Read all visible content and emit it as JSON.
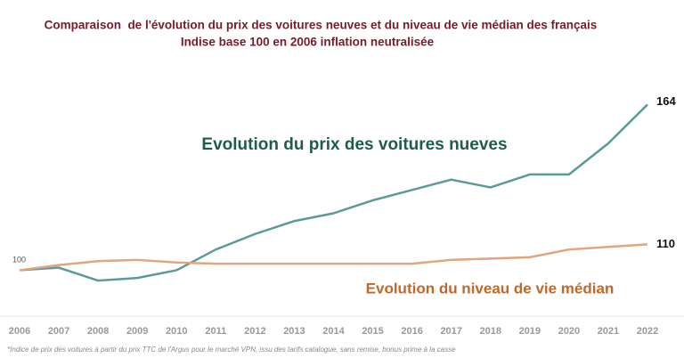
{
  "chart_data": {
    "type": "line",
    "title": "Comparaison  de l'évolution du prix des voitures neuves et du niveau de vie médian des français",
    "subtitle": "Indise base 100 en 2006 inflation neutralisée",
    "footnote": "*Indice de prix des voitures à partir du prix TTC de l'Argus pour le marché VPN, issu des tarifs catalogue, sans remise, bonus prime à la casse",
    "categories": [
      "2006",
      "2007",
      "2008",
      "2009",
      "2010",
      "2011",
      "2012",
      "2013",
      "2014",
      "2015",
      "2016",
      "2017",
      "2018",
      "2019",
      "2020",
      "2021",
      "2022"
    ],
    "series": [
      {
        "name": "Evolution du prix des voitures nueves",
        "color": "#5b9a9a",
        "label_color": "#1e5e45",
        "values": [
          100,
          101,
          96,
          97,
          100,
          108,
          114,
          119,
          122,
          127,
          131,
          135,
          132,
          137,
          137,
          149,
          164
        ]
      },
      {
        "name": "Evolution du niveau de vie médian",
        "color": "#e2a57e",
        "label_color": "#c0672a",
        "values": [
          100,
          102,
          103.5,
          104,
          103,
          102.5,
          102.5,
          102.5,
          102.5,
          102.5,
          102.5,
          104,
          104.5,
          105,
          108,
          109,
          110
        ]
      }
    ],
    "ylim": [
      90,
      170
    ],
    "grid": false
  }
}
